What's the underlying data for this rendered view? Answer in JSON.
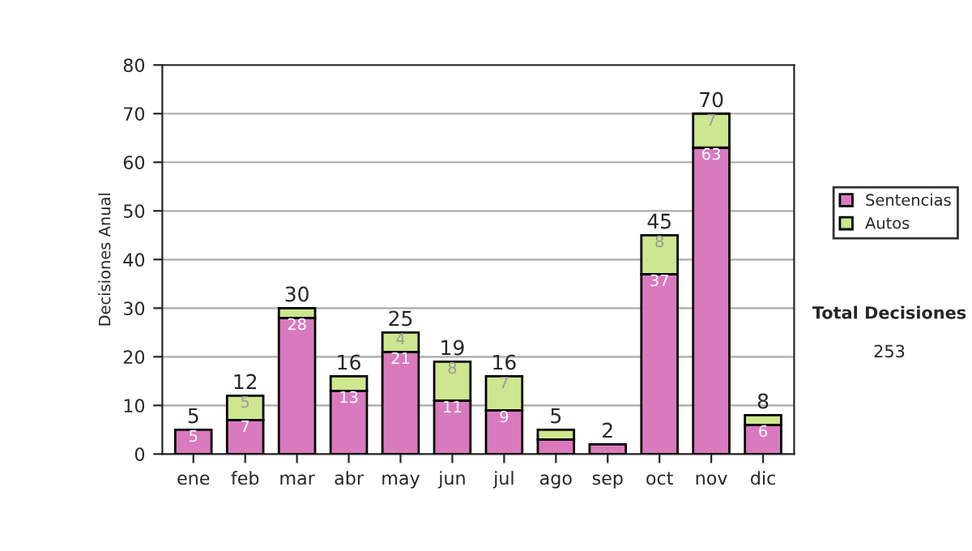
{
  "chart_data": {
    "type": "bar",
    "stacked": true,
    "ylabel": "Decisiones Anual",
    "categories": [
      "ene",
      "feb",
      "mar",
      "abr",
      "may",
      "jun",
      "jul",
      "ago",
      "sep",
      "oct",
      "nov",
      "dic"
    ],
    "series": [
      {
        "name": "Sentencias",
        "color": "#d97abf",
        "values": [
          5,
          7,
          28,
          13,
          21,
          11,
          9,
          3,
          2,
          37,
          63,
          6
        ],
        "value_labels": [
          "5",
          "7",
          "28",
          "13",
          "21",
          "11",
          "9",
          null,
          null,
          "37",
          "63",
          "6"
        ]
      },
      {
        "name": "Autos",
        "color": "#cde68f",
        "values": [
          0,
          5,
          2,
          3,
          4,
          8,
          7,
          2,
          0,
          8,
          7,
          2
        ],
        "value_labels": [
          null,
          "5",
          null,
          null,
          "4",
          "8",
          "7",
          null,
          null,
          "8",
          "7",
          null
        ]
      }
    ],
    "totals": [
      "5",
      "12",
      "30",
      "16",
      "25",
      "19",
      "16",
      "5",
      "2",
      "45",
      "70",
      "8"
    ],
    "ylim": [
      0,
      80
    ],
    "yticks": [
      0,
      10,
      20,
      30,
      40,
      50,
      60,
      70,
      80
    ],
    "grid": "y",
    "legend": "right",
    "annotations": [
      "Total Decisiones",
      "253"
    ]
  }
}
